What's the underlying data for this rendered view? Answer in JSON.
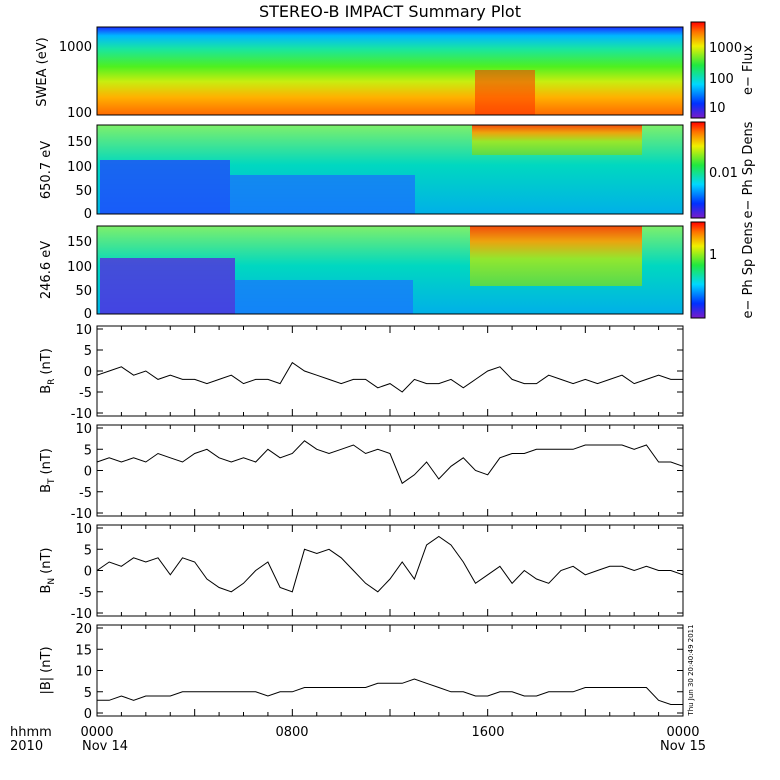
{
  "title": "STEREO-B IMPACT Summary Plot",
  "footer": {
    "time_label": "hhmm",
    "year_label": "2010",
    "ticks": [
      "0000",
      "0800",
      "1600",
      "0000"
    ],
    "date_start": "Nov 14",
    "date_end": "Nov 15"
  },
  "stamp": "Thu Jun 30 20:40:49 2011",
  "chart_data": [
    {
      "type": "heatmap",
      "id": "swea",
      "ylabel": "SWEA (eV)",
      "yscale": "log",
      "yticks": [
        "1000",
        "100"
      ],
      "colorbar_label": "e− Flux",
      "colorbar_ticks": [
        "1000",
        "100",
        "10"
      ]
    },
    {
      "type": "heatmap",
      "id": "pad650",
      "ylabel": "650.7 eV",
      "yticks": [
        "150",
        "100",
        "50",
        "0"
      ],
      "ylim": [
        0,
        180
      ],
      "colorbar_label": "e− Ph Sp Dens",
      "colorbar_ticks": [
        "0.01"
      ],
      "hot_intervals_hours": [
        [
          15.5,
          21.8
        ]
      ]
    },
    {
      "type": "heatmap",
      "id": "pad246",
      "ylabel": "246.6 eV",
      "yticks": [
        "150",
        "100",
        "50",
        "0"
      ],
      "ylim": [
        0,
        180
      ],
      "colorbar_label": "e− Ph Sp Dens",
      "colorbar_ticks": [
        "1"
      ],
      "hot_intervals_hours": [
        [
          15.2,
          21.8
        ]
      ]
    },
    {
      "type": "line",
      "id": "br",
      "ylabel": "B",
      "ylabel_sub": "R",
      "yunit": "(nT)",
      "yticks": [
        "10",
        "5",
        "0",
        "-5",
        "-10"
      ],
      "ylim": [
        -10,
        10
      ],
      "xlim_hours": [
        0,
        24
      ],
      "x": [
        0,
        0.5,
        1,
        1.5,
        2,
        2.5,
        3,
        3.5,
        4,
        4.5,
        5,
        5.5,
        6,
        6.5,
        7,
        7.5,
        8,
        8.5,
        9,
        9.5,
        10,
        10.5,
        11,
        11.5,
        12,
        12.5,
        13,
        13.5,
        14,
        14.5,
        15,
        15.5,
        16,
        16.5,
        17,
        17.5,
        18,
        18.5,
        19,
        19.5,
        20,
        20.5,
        21,
        21.5,
        22,
        22.5,
        23,
        23.5,
        24
      ],
      "values": [
        -1,
        0,
        1,
        -1,
        0,
        -2,
        -1,
        -2,
        -2,
        -3,
        -2,
        -1,
        -3,
        -2,
        -2,
        -3,
        2,
        0,
        -1,
        -2,
        -3,
        -2,
        -2,
        -4,
        -3,
        -5,
        -2,
        -3,
        -3,
        -2,
        -4,
        -2,
        0,
        1,
        -2,
        -3,
        -3,
        -1,
        -2,
        -3,
        -2,
        -3,
        -2,
        -1,
        -3,
        -2,
        -1,
        -2,
        -2
      ]
    },
    {
      "type": "line",
      "id": "bt",
      "ylabel": "B",
      "ylabel_sub": "T",
      "yunit": "(nT)",
      "yticks": [
        "10",
        "5",
        "0",
        "-5",
        "-10"
      ],
      "ylim": [
        -10,
        10
      ],
      "xlim_hours": [
        0,
        24
      ],
      "x": [
        0,
        0.5,
        1,
        1.5,
        2,
        2.5,
        3,
        3.5,
        4,
        4.5,
        5,
        5.5,
        6,
        6.5,
        7,
        7.5,
        8,
        8.5,
        9,
        9.5,
        10,
        10.5,
        11,
        11.5,
        12,
        12.5,
        13,
        13.5,
        14,
        14.5,
        15,
        15.5,
        16,
        16.5,
        17,
        17.5,
        18,
        18.5,
        19,
        19.5,
        20,
        20.5,
        21,
        21.5,
        22,
        22.5,
        23,
        23.5,
        24
      ],
      "values": [
        2,
        3,
        2,
        3,
        2,
        4,
        3,
        2,
        4,
        5,
        3,
        2,
        3,
        2,
        5,
        3,
        4,
        7,
        5,
        4,
        5,
        6,
        4,
        5,
        4,
        -3,
        -1,
        2,
        -2,
        1,
        3,
        0,
        -1,
        3,
        4,
        4,
        5,
        5,
        5,
        5,
        6,
        6,
        6,
        6,
        5,
        6,
        2,
        2,
        1
      ]
    },
    {
      "type": "line",
      "id": "bn",
      "ylabel": "B",
      "ylabel_sub": "N",
      "yunit": "(nT)",
      "yticks": [
        "10",
        "5",
        "0",
        "-5",
        "-10"
      ],
      "ylim": [
        -10,
        10
      ],
      "xlim_hours": [
        0,
        24
      ],
      "x": [
        0,
        0.5,
        1,
        1.5,
        2,
        2.5,
        3,
        3.5,
        4,
        4.5,
        5,
        5.5,
        6,
        6.5,
        7,
        7.5,
        8,
        8.5,
        9,
        9.5,
        10,
        10.5,
        11,
        11.5,
        12,
        12.5,
        13,
        13.5,
        14,
        14.5,
        15,
        15.5,
        16,
        16.5,
        17,
        17.5,
        18,
        18.5,
        19,
        19.5,
        20,
        20.5,
        21,
        21.5,
        22,
        22.5,
        23,
        23.5,
        24
      ],
      "values": [
        0,
        2,
        1,
        3,
        2,
        3,
        -1,
        3,
        2,
        -2,
        -4,
        -5,
        -3,
        0,
        2,
        -4,
        -5,
        5,
        4,
        5,
        3,
        0,
        -3,
        -5,
        -2,
        2,
        -2,
        6,
        8,
        6,
        2,
        -3,
        -1,
        1,
        -3,
        0,
        -2,
        -3,
        0,
        1,
        -1,
        0,
        1,
        1,
        0,
        1,
        0,
        0,
        -1
      ]
    },
    {
      "type": "line",
      "id": "bmag",
      "ylabel": "|B|",
      "yunit": "(nT)",
      "yticks": [
        "20",
        "15",
        "10",
        "5",
        "0"
      ],
      "ylim": [
        0,
        20
      ],
      "xlim_hours": [
        0,
        24
      ],
      "x": [
        0,
        0.5,
        1,
        1.5,
        2,
        2.5,
        3,
        3.5,
        4,
        4.5,
        5,
        5.5,
        6,
        6.5,
        7,
        7.5,
        8,
        8.5,
        9,
        9.5,
        10,
        10.5,
        11,
        11.5,
        12,
        12.5,
        13,
        13.5,
        14,
        14.5,
        15,
        15.5,
        16,
        16.5,
        17,
        17.5,
        18,
        18.5,
        19,
        19.5,
        20,
        20.5,
        21,
        21.5,
        22,
        22.5,
        23,
        23.5,
        24
      ],
      "values": [
        3,
        3,
        4,
        3,
        4,
        4,
        4,
        5,
        5,
        5,
        5,
        5,
        5,
        5,
        4,
        5,
        5,
        6,
        6,
        6,
        6,
        6,
        6,
        7,
        7,
        7,
        8,
        7,
        6,
        5,
        5,
        4,
        4,
        5,
        5,
        4,
        4,
        5,
        5,
        5,
        6,
        6,
        6,
        6,
        6,
        6,
        3,
        2,
        2
      ]
    }
  ]
}
